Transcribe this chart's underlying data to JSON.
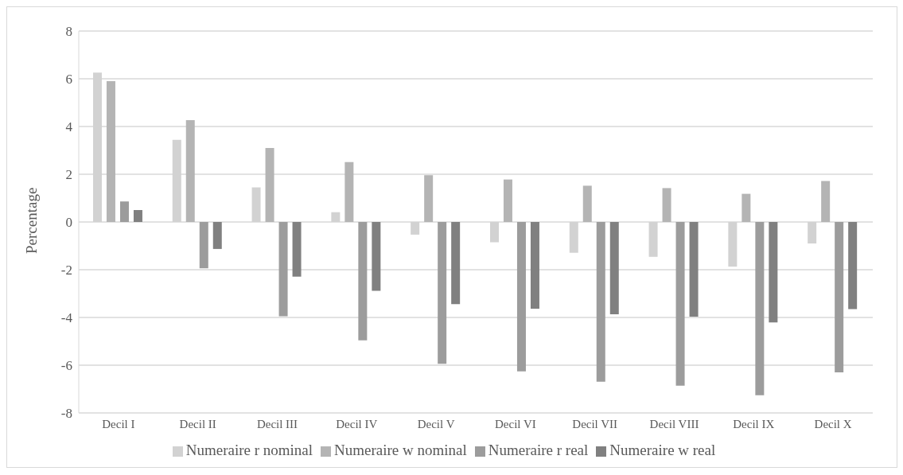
{
  "chart_data": {
    "type": "bar",
    "ylabel": "Percentage",
    "categories": [
      "Decil I",
      "Decil II",
      "Decil III",
      "Decil IV",
      "Decil V",
      "Decil VI",
      "Decil VII",
      "Decil VIII",
      "Decil IX",
      "Decil X"
    ],
    "series": [
      {
        "name": "Numeraire r nominal",
        "color": "#d2d2d2",
        "values": [
          6.26,
          3.44,
          1.45,
          0.41,
          -0.53,
          -0.85,
          -1.29,
          -1.46,
          -1.87,
          -0.9
        ]
      },
      {
        "name": "Numeraire w nominal",
        "color": "#b4b4b4",
        "values": [
          5.9,
          4.27,
          3.1,
          2.51,
          1.96,
          1.78,
          1.52,
          1.42,
          1.18,
          1.72
        ]
      },
      {
        "name": "Numeraire r real",
        "color": "#9c9c9c",
        "values": [
          0.86,
          -1.94,
          -3.95,
          -4.96,
          -5.94,
          -6.26,
          -6.69,
          -6.86,
          -7.26,
          -6.3
        ]
      },
      {
        "name": "Numeraire w real",
        "color": "#808080",
        "values": [
          0.5,
          -1.13,
          -2.29,
          -2.88,
          -3.44,
          -3.63,
          -3.87,
          -3.97,
          -4.21,
          -3.65
        ]
      }
    ],
    "ylim": [
      -8,
      8
    ],
    "yticks": [
      -8,
      -6,
      -4,
      -2,
      0,
      2,
      4,
      6,
      8
    ],
    "grid": "y",
    "legend": "bottom"
  }
}
